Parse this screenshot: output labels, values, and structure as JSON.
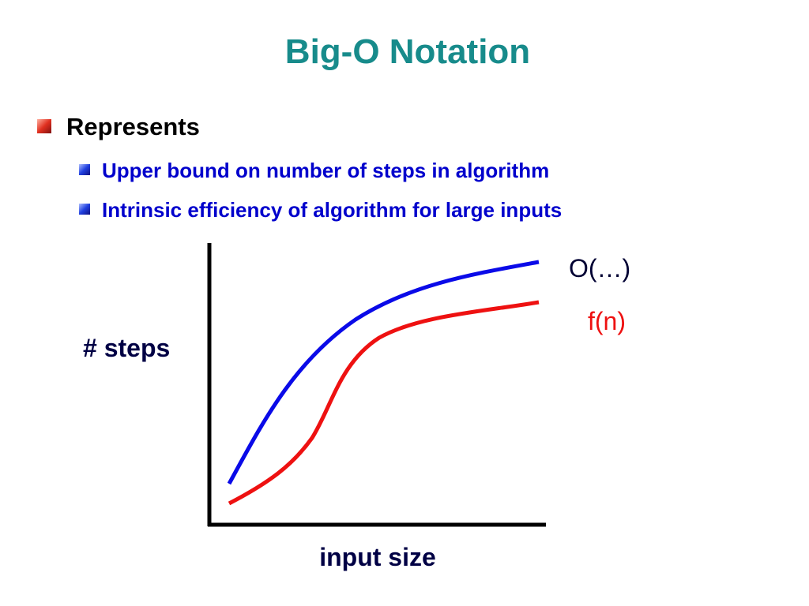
{
  "header": {
    "title": "Big-O Notation"
  },
  "bullets": [
    {
      "text": "Represents",
      "subitems": [
        "Upper bound on number of steps in algorithm",
        "Intrinsic efficiency of algorithm for large inputs"
      ]
    }
  ],
  "diagram": {
    "y_label": "# steps",
    "x_label": "input size",
    "upper_curve_label": "O(…)",
    "lower_curve_label": "f(n)"
  }
}
